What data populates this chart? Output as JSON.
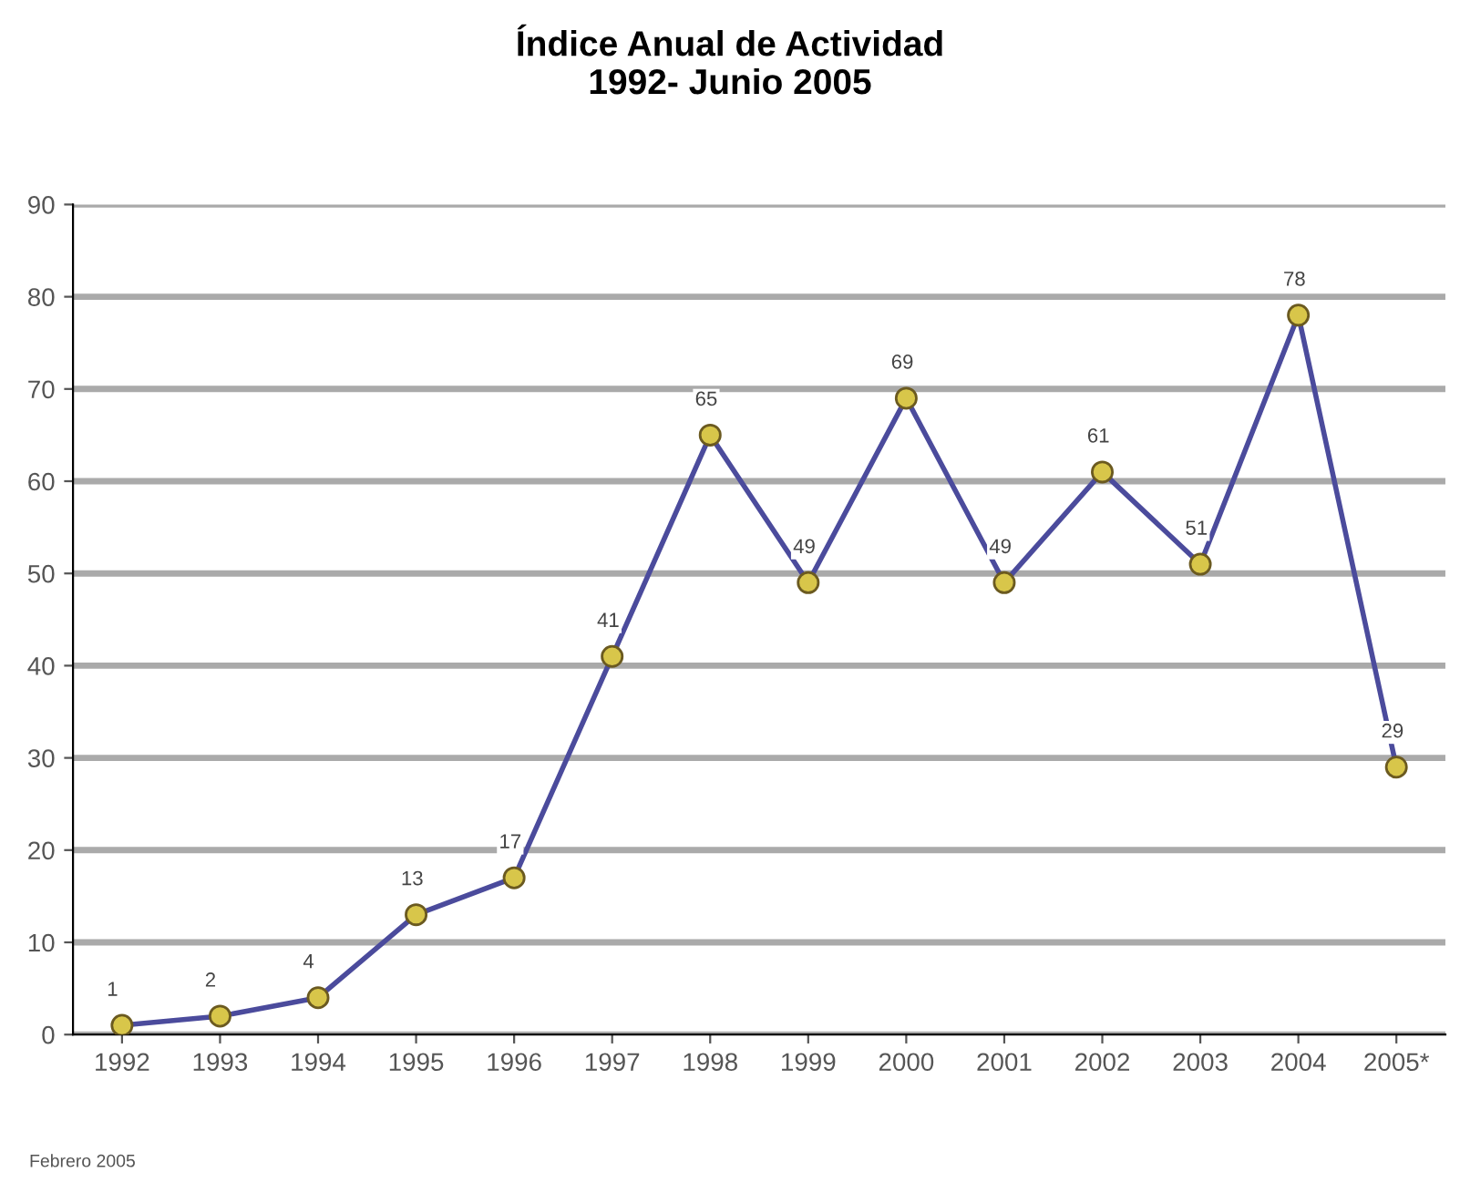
{
  "chart_data": {
    "type": "line",
    "title": "Índice Anual de Actividad\n1992- Junio 2005",
    "categories": [
      "1992",
      "1993",
      "1994",
      "1995",
      "1996",
      "1997",
      "1998",
      "1999",
      "2000",
      "2001",
      "2002",
      "2003",
      "2004",
      "2005*"
    ],
    "series": [
      {
        "color": "#4b4b9c",
        "values": [
          1,
          2,
          4,
          13,
          17,
          41,
          65,
          49,
          69,
          49,
          61,
          51,
          78,
          29
        ]
      }
    ],
    "ylim": [
      0,
      90
    ],
    "yticks": [
      0,
      10,
      20,
      30,
      40,
      50,
      60,
      70,
      80,
      90
    ],
    "grid": "y",
    "marker": "circle",
    "line_style": "solid",
    "data_labels": true,
    "annotations": [
      "Febrero 2005"
    ]
  }
}
